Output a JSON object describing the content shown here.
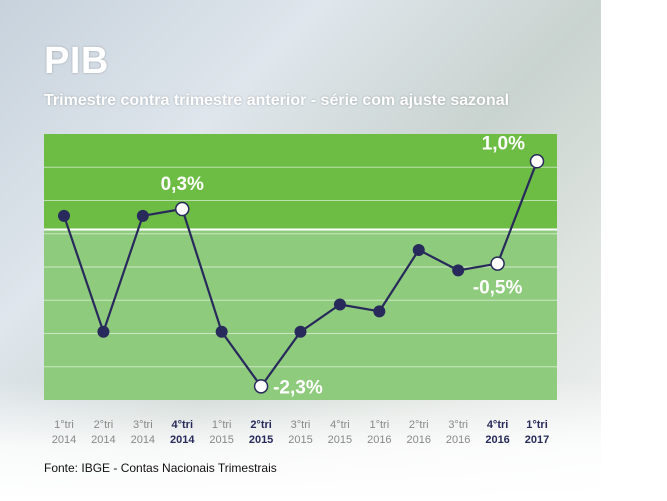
{
  "header": {
    "title": "PIB",
    "subtitle": "Trimestre contra trimestre anterior - série com ajuste sazonal"
  },
  "footer": {
    "source": "Fonte: IBGE - Contas Nacionais Trimestrais"
  },
  "colors": {
    "positive_band": "#6dbd45",
    "negative_band": "#8fcb7d",
    "line": "#272a5a",
    "highlight_tick": "#272a5a",
    "normal_tick": "#888888"
  },
  "chart_data": {
    "type": "line",
    "title": "PIB",
    "subtitle": "Trimestre contra trimestre anterior - série com ajuste sazonal",
    "categories": [
      {
        "q": "1°tri",
        "y": "2014",
        "highlight": false
      },
      {
        "q": "2°tri",
        "y": "2014",
        "highlight": false
      },
      {
        "q": "3°tri",
        "y": "2014",
        "highlight": false
      },
      {
        "q": "4°tri",
        "y": "2014",
        "highlight": true
      },
      {
        "q": "1°tri",
        "y": "2015",
        "highlight": false
      },
      {
        "q": "2°tri",
        "y": "2015",
        "highlight": true
      },
      {
        "q": "3°tri",
        "y": "2015",
        "highlight": false
      },
      {
        "q": "4°tri",
        "y": "2015",
        "highlight": false
      },
      {
        "q": "1°tri",
        "y": "2016",
        "highlight": false
      },
      {
        "q": "2°tri",
        "y": "2016",
        "highlight": false
      },
      {
        "q": "3°tri",
        "y": "2016",
        "highlight": false
      },
      {
        "q": "4°tri",
        "y": "2016",
        "highlight": true
      },
      {
        "q": "1°tri",
        "y": "2017",
        "highlight": true
      }
    ],
    "series": [
      {
        "values": [
          0.2,
          -1.5,
          0.2,
          0.3,
          -1.5,
          -2.3,
          -1.5,
          -1.1,
          -1.2,
          -0.3,
          -0.6,
          -0.5,
          1.0
        ]
      }
    ],
    "annotations": [
      {
        "index": 3,
        "text": "0,3%",
        "position": "above"
      },
      {
        "index": 5,
        "text": "-2,3%",
        "position": "right"
      },
      {
        "index": 11,
        "text": "-0,5%",
        "position": "below"
      },
      {
        "index": 12,
        "text": "1,0%",
        "position": "above-left"
      }
    ],
    "ylim": [
      -2.5,
      1.4
    ],
    "zero_line": true,
    "grid": true,
    "xlabel": "",
    "ylabel": ""
  }
}
